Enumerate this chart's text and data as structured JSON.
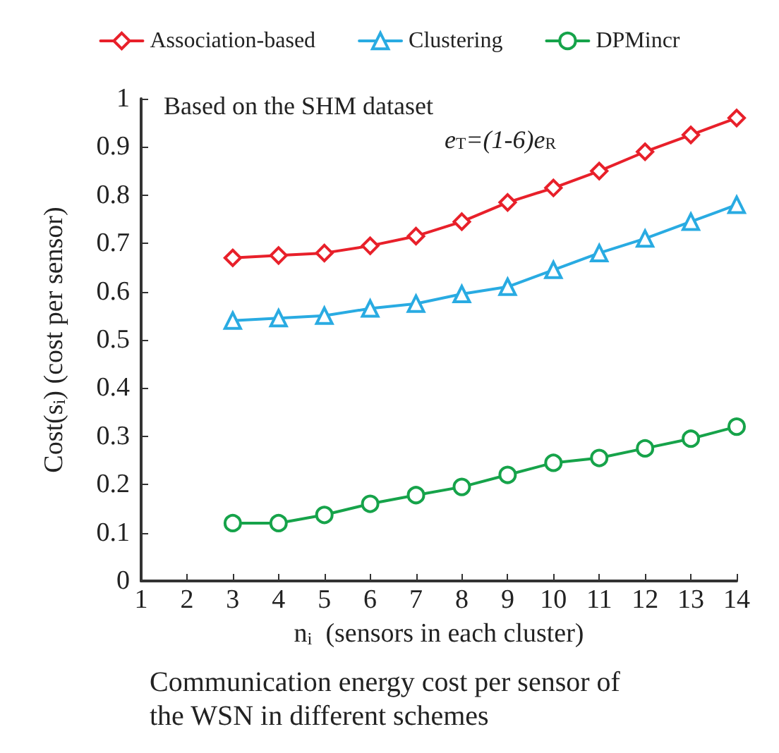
{
  "chart_data": {
    "type": "line",
    "title": "Based on the SHM dataset",
    "xlabel": "n$_{i}$  (sensors in each cluster)",
    "ylabel": "Cost(s$_{i}$) (cost per sensor)",
    "annotations": [
      "e$_{T}$=(1-6)e$_{R}$",
      "Communication energy cost per sensor of the WSN in different schemes"
    ],
    "x": [
      3,
      4,
      5,
      6,
      7,
      8,
      9,
      10,
      11,
      12,
      13,
      14
    ],
    "series": [
      {
        "name": "Association-based",
        "color": "#e8202a",
        "marker": "diamond",
        "values": [
          0.67,
          0.675,
          0.68,
          0.695,
          0.715,
          0.745,
          0.785,
          0.815,
          0.85,
          0.89,
          0.925,
          0.96
        ]
      },
      {
        "name": "Clustering",
        "color": "#29abe2",
        "marker": "triangle",
        "values": [
          0.54,
          0.545,
          0.55,
          0.565,
          0.575,
          0.595,
          0.61,
          0.645,
          0.68,
          0.71,
          0.745,
          0.78
        ]
      },
      {
        "name": "DPMincr",
        "color": "#16a34a",
        "marker": "circle",
        "values": [
          0.12,
          0.12,
          0.137,
          0.16,
          0.178,
          0.195,
          0.22,
          0.245,
          0.255,
          0.275,
          0.295,
          0.32
        ]
      }
    ],
    "xlim": [
      1,
      14
    ],
    "xticks": [
      1,
      2,
      3,
      4,
      5,
      6,
      7,
      8,
      9,
      10,
      11,
      12,
      13,
      14
    ],
    "ylim": [
      0,
      1
    ],
    "yticks": [
      0,
      0.1,
      0.2,
      0.3,
      0.4,
      0.5,
      0.6,
      0.7,
      0.8,
      0.9,
      1
    ],
    "grid": false,
    "legend": "top",
    "line_style": "solid"
  }
}
